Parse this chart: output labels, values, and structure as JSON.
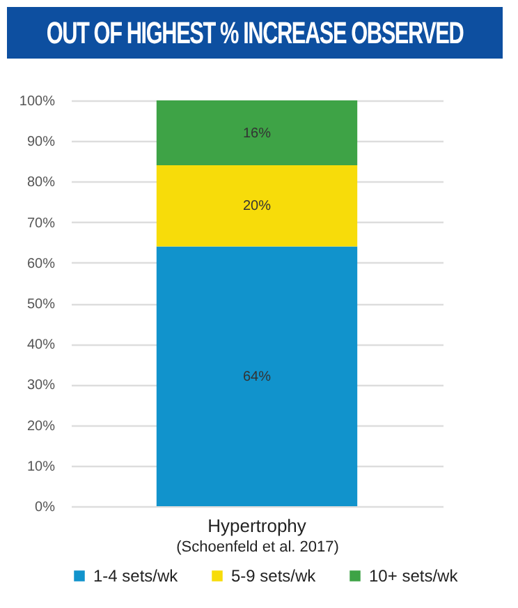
{
  "chart_data": {
    "type": "bar",
    "title": "OUT OF HIGHEST % INCREASE OBSERVED",
    "xlabel": "(Schoenfeld et al. 2017)",
    "categories": [
      "Hypertrophy"
    ],
    "stacked": true,
    "series": [
      {
        "name": "1-4 sets/wk",
        "color": "#1193cc",
        "values": [
          64
        ],
        "value_labels": [
          "64%"
        ]
      },
      {
        "name": "5-9 sets/wk",
        "color": "#f7dc0a",
        "values": [
          20
        ],
        "value_labels": [
          "20%"
        ]
      },
      {
        "name": "10+ sets/wk",
        "color": "#3ea346",
        "values": [
          16
        ],
        "value_labels": [
          "16%"
        ]
      }
    ],
    "ylim": [
      0,
      100
    ],
    "yticks": [
      {
        "value": 0,
        "label": "0%"
      },
      {
        "value": 10,
        "label": "10%"
      },
      {
        "value": 20,
        "label": "20%"
      },
      {
        "value": 30,
        "label": "30%"
      },
      {
        "value": 40,
        "label": "40%"
      },
      {
        "value": 50,
        "label": "50%"
      },
      {
        "value": 60,
        "label": "60%"
      },
      {
        "value": 70,
        "label": "70%"
      },
      {
        "value": 80,
        "label": "80%"
      },
      {
        "value": 90,
        "label": "90%"
      },
      {
        "value": 100,
        "label": "100%"
      }
    ],
    "grid": "y",
    "legend": "bottom"
  }
}
